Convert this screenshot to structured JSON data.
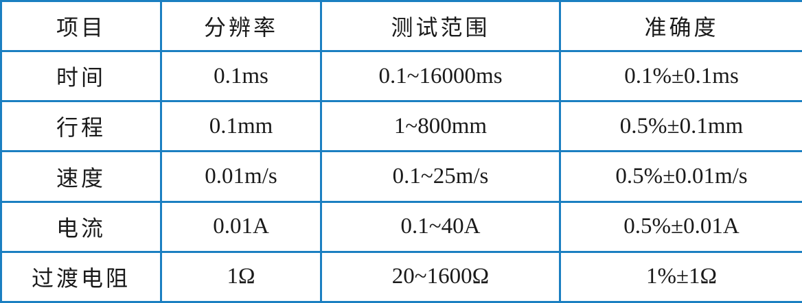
{
  "colors": {
    "border": "#1b7fc1",
    "text": "#1a1a1a"
  },
  "headers": [
    "项目",
    "分辨率",
    "测试范围",
    "准确度"
  ],
  "rows": [
    [
      "时间",
      "0.1ms",
      "0.1~16000ms",
      "0.1%±0.1ms"
    ],
    [
      "行程",
      "0.1mm",
      "1~800mm",
      "0.5%±0.1mm"
    ],
    [
      "速度",
      "0.01m/s",
      "0.1~25m/s",
      "0.5%±0.01m/s"
    ],
    [
      "电流",
      "0.01A",
      "0.1~40A",
      "0.5%±0.01A"
    ],
    [
      "过渡电阻",
      "1Ω",
      "20~1600Ω",
      "1%±1Ω"
    ]
  ]
}
